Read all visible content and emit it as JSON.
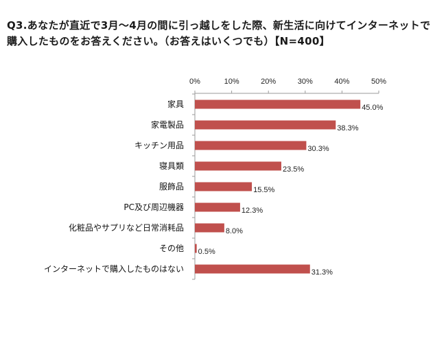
{
  "chart_data": {
    "type": "bar",
    "orientation": "horizontal",
    "title": "Q3.あなたが直近で3月～4月の間に引っ越しをした際、新生活に向けてインターネットで購入したものをお答えください。（お答えはいくつでも）【N=400】",
    "categories": [
      "家具",
      "家電製品",
      "キッチン用品",
      "寝具類",
      "服飾品",
      "PC及び周辺機器",
      "化粧品やサプリなど日常消耗品",
      "その他",
      "インターネットで購入したものはない"
    ],
    "values": [
      45.0,
      38.3,
      30.3,
      23.5,
      15.5,
      12.3,
      8.0,
      0.5,
      31.3
    ],
    "value_labels": [
      "45.0%",
      "38.3%",
      "30.3%",
      "23.5%",
      "15.5%",
      "12.3%",
      "8.0%",
      "0.5%",
      "31.3%"
    ],
    "xlim": [
      0,
      50
    ],
    "x_ticks": [
      "0%",
      "10%",
      "20%",
      "30%",
      "40%",
      "50%"
    ],
    "bar_color": "#c0504d",
    "grid": false,
    "legend": "none"
  }
}
